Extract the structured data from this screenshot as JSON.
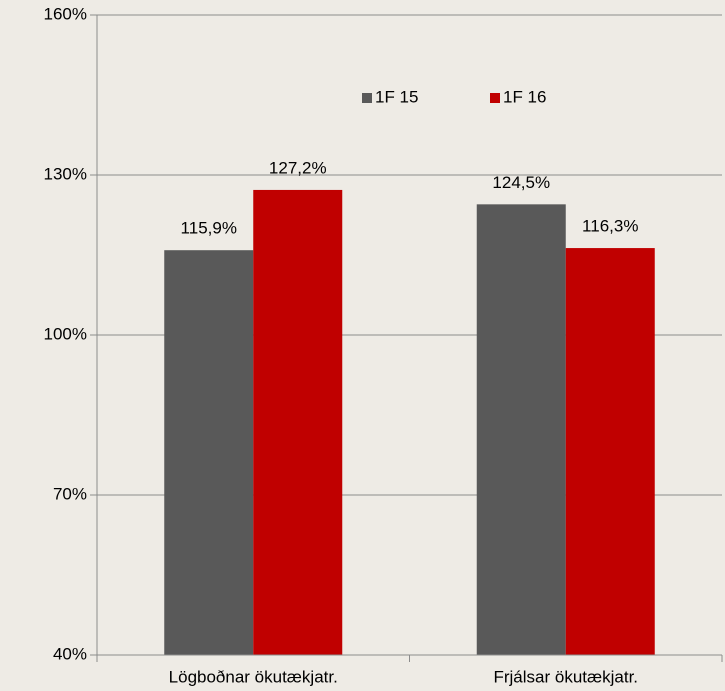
{
  "chart_data": {
    "type": "bar",
    "categories": [
      "Lögboðnar ökutækjatr.",
      "Frjálsar ökutækjatr."
    ],
    "series": [
      {
        "name": "1F 15",
        "color": "#595959",
        "values": [
          115.9,
          124.5
        ],
        "value_labels": [
          "115,9%",
          "124,5%"
        ]
      },
      {
        "name": "1F 16",
        "color": "#c00000",
        "values": [
          127.2,
          116.3
        ],
        "value_labels": [
          "127,2%",
          "116,3%"
        ]
      }
    ],
    "ylim": [
      40,
      160
    ],
    "yticks": [
      {
        "value": 40,
        "label": "40%"
      },
      {
        "value": 70,
        "label": "70%"
      },
      {
        "value": 100,
        "label": "100%"
      },
      {
        "value": 130,
        "label": "130%"
      },
      {
        "value": 160,
        "label": "160%"
      }
    ],
    "grid": true,
    "legend": "top"
  }
}
